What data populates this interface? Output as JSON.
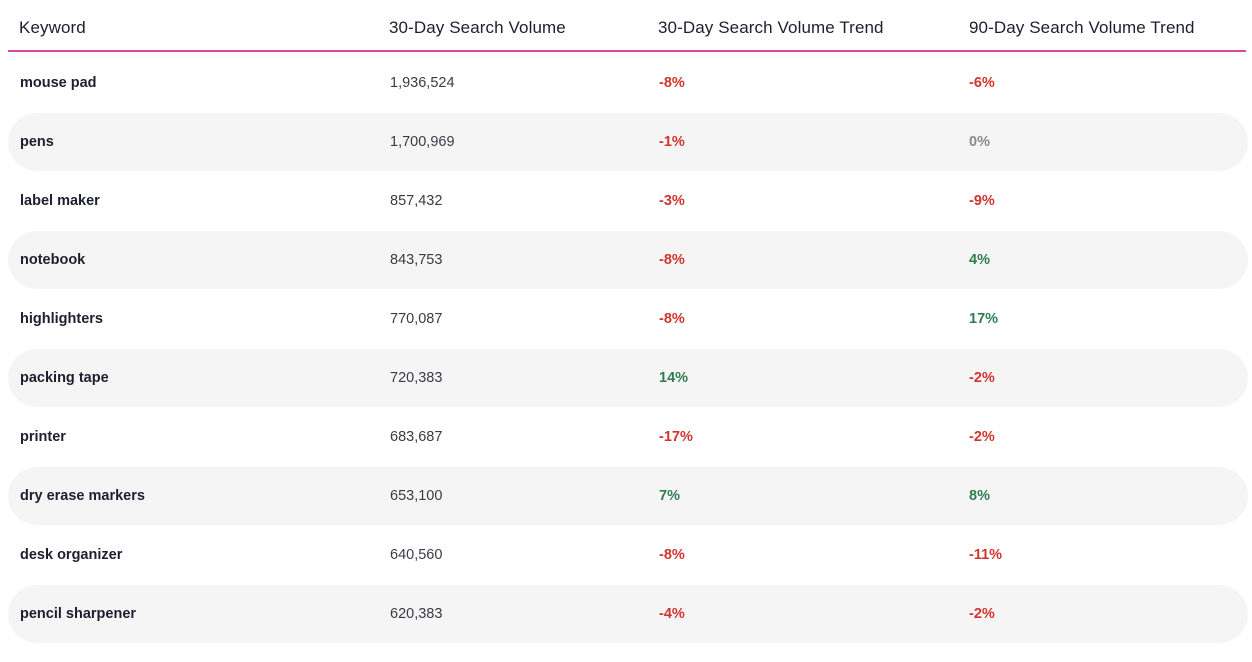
{
  "table": {
    "columns": [
      "Keyword",
      "30-Day Search Volume",
      "30-Day Search Volume Trend",
      "90-Day Search Volume Trend"
    ],
    "rows": [
      {
        "keyword": "mouse pad",
        "volume": "1,936,524",
        "trend30": "-8%",
        "trend90": "-6%"
      },
      {
        "keyword": "pens",
        "volume": "1,700,969",
        "trend30": "-1%",
        "trend90": "0%"
      },
      {
        "keyword": "label maker",
        "volume": "857,432",
        "trend30": "-3%",
        "trend90": "-9%"
      },
      {
        "keyword": "notebook",
        "volume": "843,753",
        "trend30": "-8%",
        "trend90": "4%"
      },
      {
        "keyword": "highlighters",
        "volume": "770,087",
        "trend30": "-8%",
        "trend90": "17%"
      },
      {
        "keyword": "packing tape",
        "volume": "720,383",
        "trend30": "14%",
        "trend90": "-2%"
      },
      {
        "keyword": "printer",
        "volume": "683,687",
        "trend30": "-17%",
        "trend90": "-2%"
      },
      {
        "keyword": "dry erase markers",
        "volume": "653,100",
        "trend30": "7%",
        "trend90": "8%"
      },
      {
        "keyword": "desk organizer",
        "volume": "640,560",
        "trend30": "-8%",
        "trend90": "-11%"
      },
      {
        "keyword": "pencil sharpener",
        "volume": "620,383",
        "trend30": "-4%",
        "trend90": "-2%"
      }
    ]
  },
  "colors": {
    "header_rule": "#d64aa0",
    "negative": "#d1342f",
    "positive": "#2e7d4f",
    "neutral": "#8a8a8f",
    "stripe": "#f5f5f6"
  }
}
